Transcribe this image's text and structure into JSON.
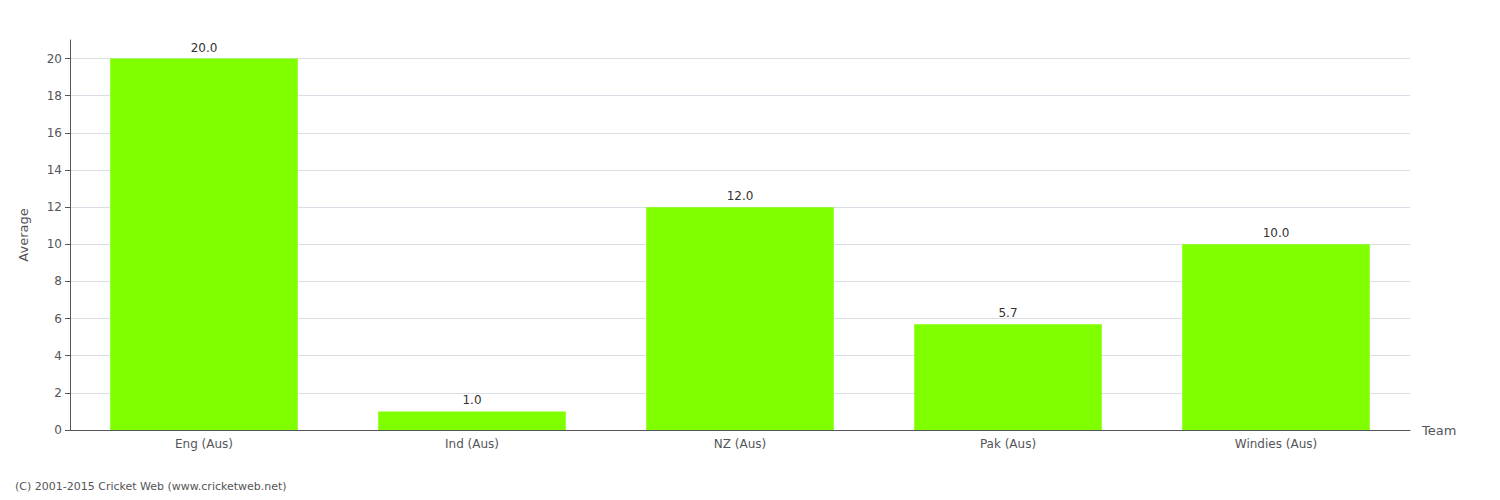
{
  "chart_data": {
    "type": "bar",
    "categories": [
      "Eng (Aus)",
      "Ind (Aus)",
      "NZ (Aus)",
      "Pak (Aus)",
      "Windies (Aus)"
    ],
    "values": [
      20.0,
      1.0,
      12.0,
      5.7,
      10.0
    ],
    "value_labels": [
      "20.0",
      "1.0",
      "12.0",
      "5.7",
      "10.0"
    ],
    "data_labels": true,
    "color": "#7fff00",
    "xlabel": "Team",
    "ylabel": "Average",
    "ylim": [
      0,
      21
    ],
    "yticks": [
      0,
      2,
      4,
      6,
      8,
      10,
      12,
      14,
      16,
      18,
      20
    ],
    "grid": true,
    "annotations": [
      "(C) 2001-2015 Cricket Web (www.cricketweb.net)"
    ]
  }
}
